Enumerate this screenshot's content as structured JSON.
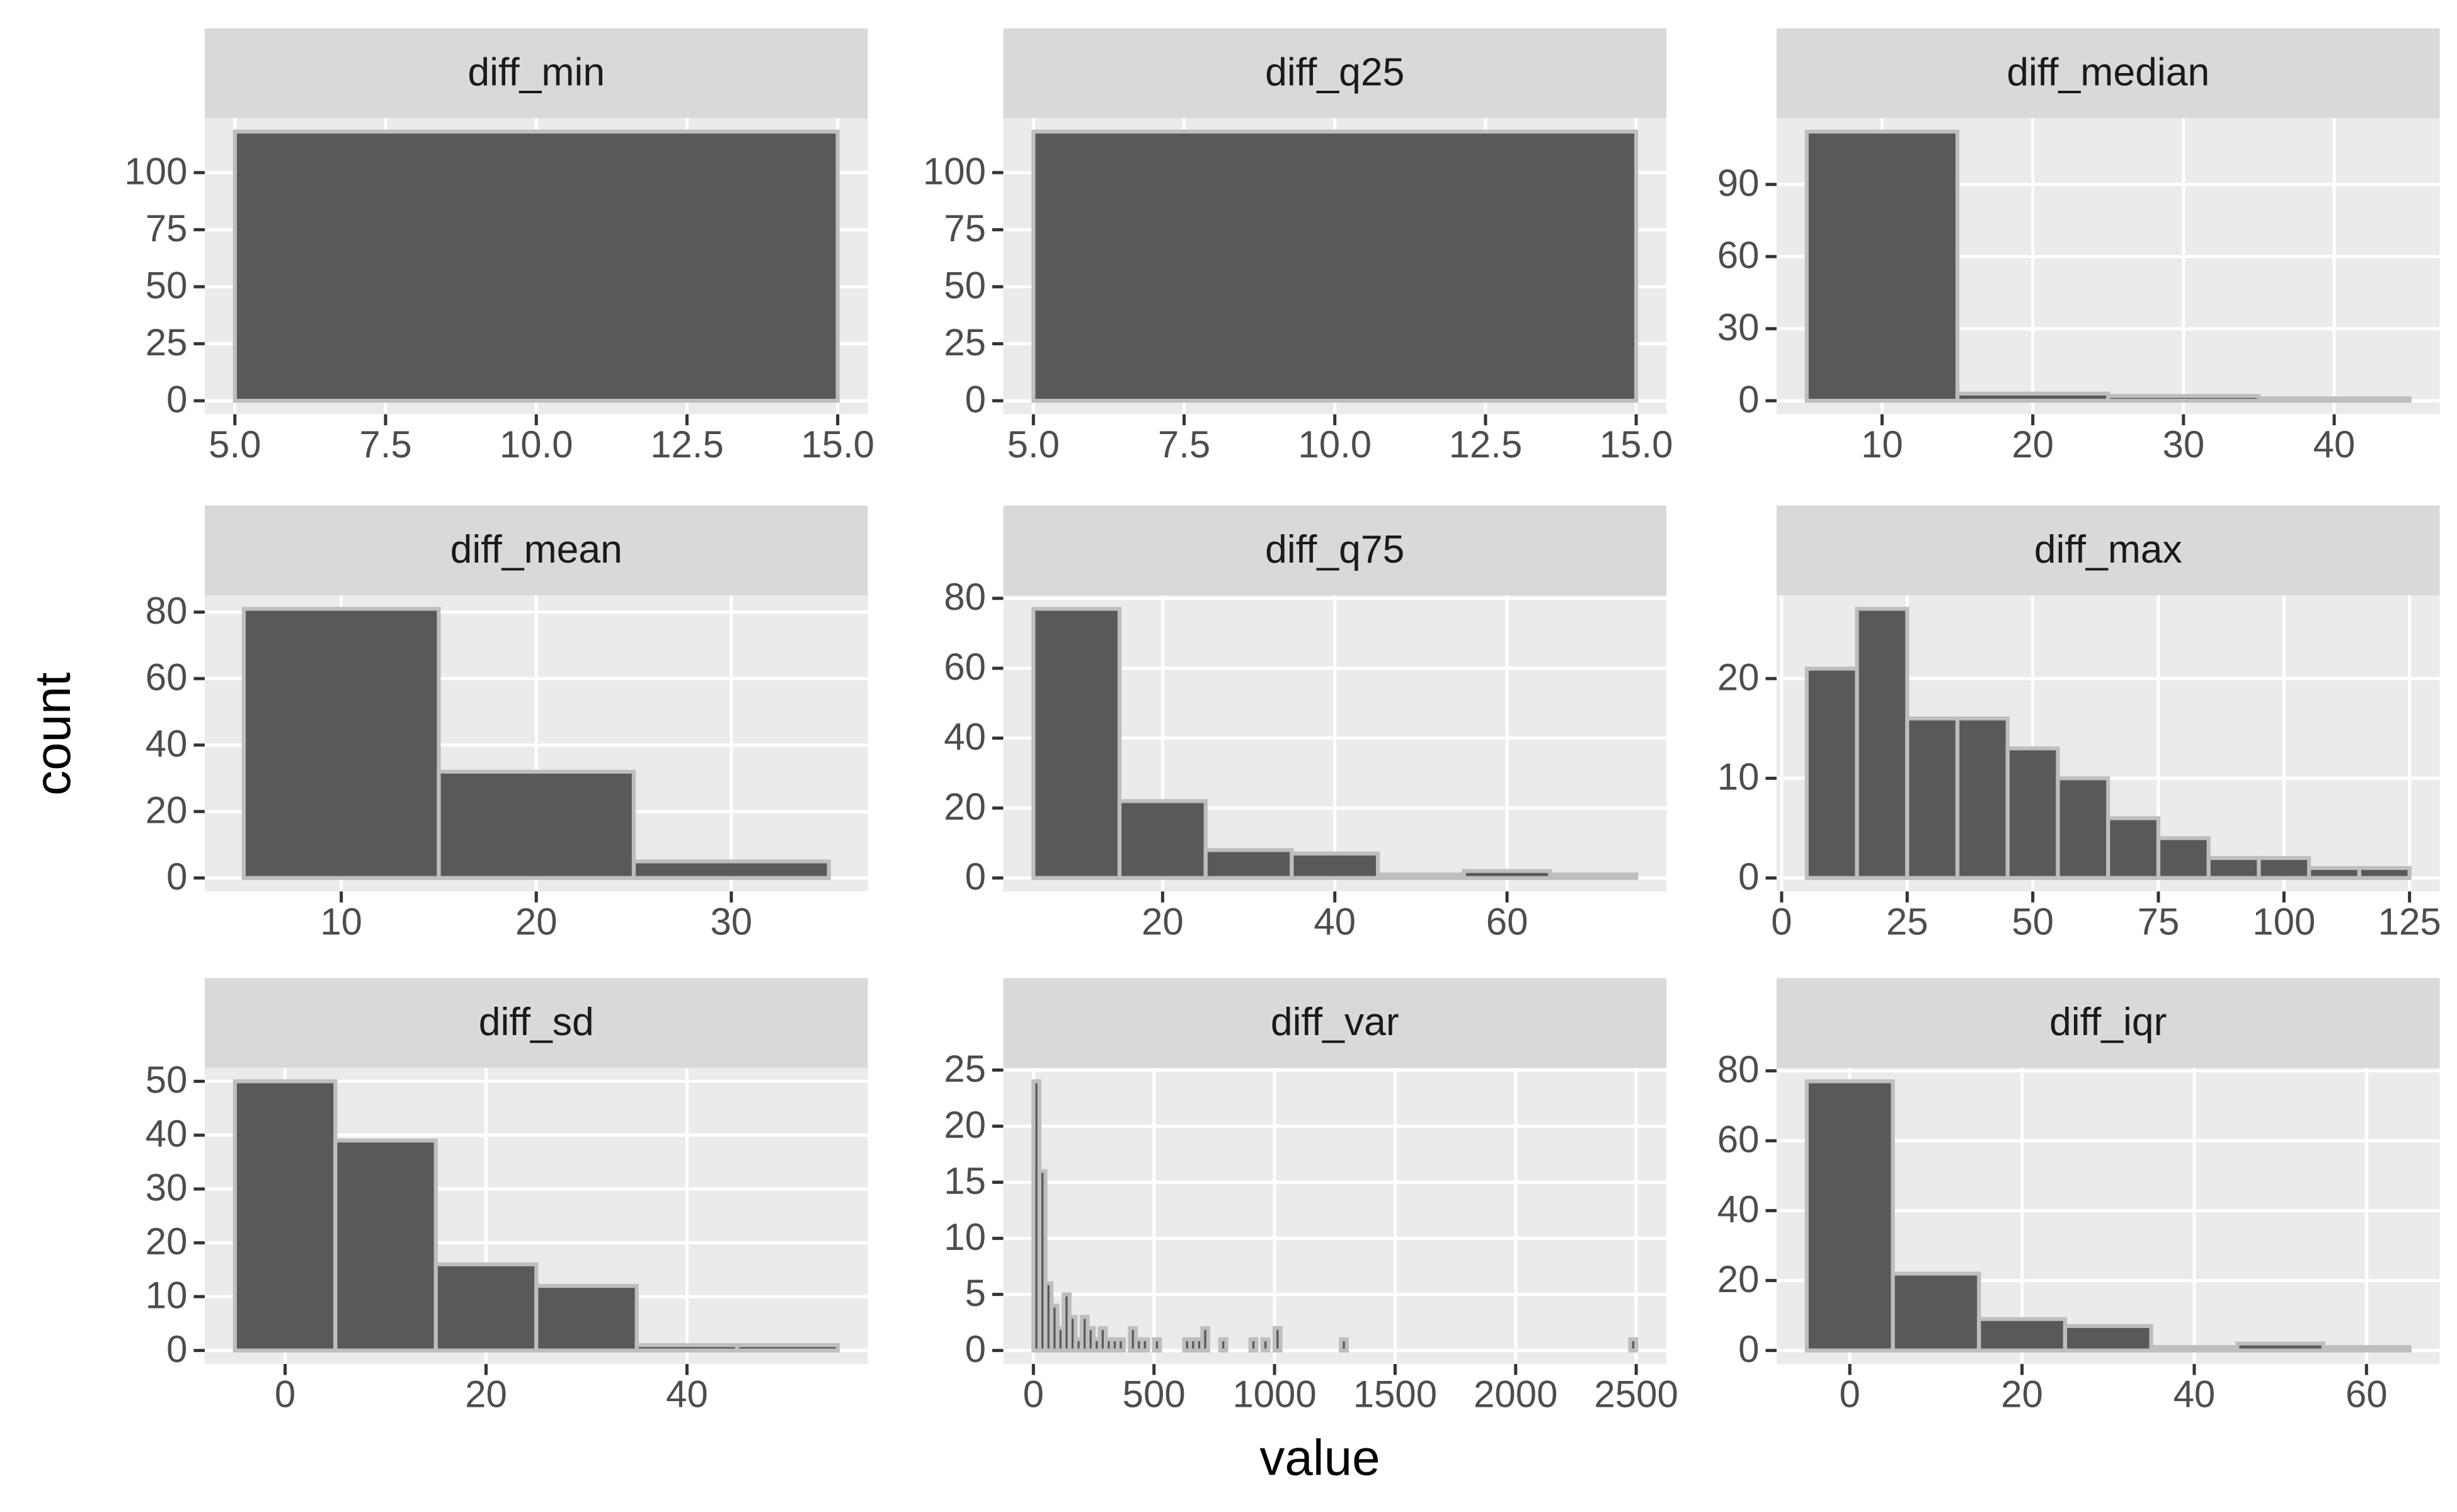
{
  "x_label": "value",
  "y_label": "count",
  "chart_data": [
    {
      "type": "histogram",
      "title": "diff_min",
      "bins": [
        5,
        15
      ],
      "counts": [
        118
      ],
      "color": "#595959",
      "edgecolor": "#bebebe",
      "xlim": [
        4.5,
        15.5
      ],
      "xticks": [
        {
          "value": 5,
          "label": "5.0"
        },
        {
          "value": 7.5,
          "label": "7.5"
        },
        {
          "value": 10,
          "label": "10.0"
        },
        {
          "value": 12.5,
          "label": "12.5"
        },
        {
          "value": 15,
          "label": "15.0"
        }
      ],
      "ylim": [
        -5.9,
        123.9
      ],
      "yticks": [
        0,
        25,
        50,
        75,
        100
      ],
      "grid": true
    },
    {
      "type": "histogram",
      "title": "diff_q25",
      "bins": [
        5,
        15
      ],
      "counts": [
        118
      ],
      "color": "#595959",
      "edgecolor": "#bebebe",
      "xlim": [
        4.5,
        15.5
      ],
      "xticks": [
        {
          "value": 5,
          "label": "5.0"
        },
        {
          "value": 7.5,
          "label": "7.5"
        },
        {
          "value": 10,
          "label": "10.0"
        },
        {
          "value": 12.5,
          "label": "12.5"
        },
        {
          "value": 15,
          "label": "15.0"
        }
      ],
      "ylim": [
        -5.9,
        123.9
      ],
      "yticks": [
        0,
        25,
        50,
        75,
        100
      ],
      "grid": true
    },
    {
      "type": "histogram",
      "title": "diff_median",
      "bins": [
        5,
        15,
        25,
        35,
        45
      ],
      "counts": [
        112,
        3,
        2,
        1
      ],
      "color": "#595959",
      "edgecolor": "#bebebe",
      "xlim": [
        3,
        47
      ],
      "xticks": [
        10,
        20,
        30,
        40
      ],
      "ylim": [
        -5.6,
        117.6
      ],
      "yticks": [
        0,
        30,
        60,
        90
      ],
      "grid": true
    },
    {
      "type": "histogram",
      "title": "diff_mean",
      "bins": [
        5,
        15,
        25,
        35
      ],
      "counts": [
        81,
        32,
        5
      ],
      "color": "#595959",
      "edgecolor": "#bebebe",
      "xlim": [
        3,
        37
      ],
      "xticks": [
        10,
        20,
        30
      ],
      "ylim": [
        -4.05,
        85.05
      ],
      "yticks": [
        0,
        20,
        40,
        60,
        80
      ],
      "grid": true
    },
    {
      "type": "histogram",
      "title": "diff_q75",
      "bins": [
        5,
        15,
        25,
        35,
        45,
        55,
        65,
        75
      ],
      "counts": [
        77,
        22,
        8,
        7,
        1,
        2,
        1
      ],
      "color": "#595959",
      "edgecolor": "#bebebe",
      "xlim": [
        1.5,
        78.5
      ],
      "xticks": [
        20,
        40,
        60
      ],
      "ylim": [
        -3.85,
        80.85
      ],
      "yticks": [
        0,
        20,
        40,
        60,
        80
      ],
      "grid": true
    },
    {
      "type": "histogram",
      "title": "diff_max",
      "bins": [
        5,
        15,
        25,
        35,
        45,
        55,
        65,
        75,
        85,
        95,
        105,
        115,
        125
      ],
      "counts": [
        21,
        27,
        16,
        16,
        13,
        10,
        6,
        4,
        2,
        2,
        1,
        1
      ],
      "color": "#595959",
      "edgecolor": "#bebebe",
      "xlim": [
        -1,
        131
      ],
      "xticks": [
        0,
        25,
        50,
        75,
        100,
        125
      ],
      "ylim": [
        -1.35,
        28.35
      ],
      "yticks": [
        0,
        10,
        20
      ],
      "grid": true
    },
    {
      "type": "histogram",
      "title": "diff_sd",
      "bins": [
        -5,
        5,
        15,
        25,
        35,
        45,
        55
      ],
      "counts": [
        50,
        39,
        16,
        12,
        1,
        1
      ],
      "color": "#595959",
      "edgecolor": "#bebebe",
      "xlim": [
        -8,
        58
      ],
      "xticks": [
        0,
        20,
        40
      ],
      "ylim": [
        -2.5,
        52.5
      ],
      "yticks": [
        0,
        10,
        20,
        30,
        40,
        50
      ],
      "grid": true
    },
    {
      "type": "histogram",
      "title": "diff_var",
      "bins": [
        0,
        25,
        50,
        75,
        100,
        125,
        150,
        175,
        200,
        225,
        250,
        275,
        300,
        325,
        350,
        375,
        400,
        425,
        450,
        475,
        500,
        525,
        550,
        575,
        600,
        625,
        650,
        675,
        700,
        725,
        750,
        775,
        800,
        825,
        850,
        875,
        900,
        925,
        950,
        975,
        1000,
        1025,
        1050,
        1075,
        1100,
        1125,
        1150,
        1175,
        1200,
        1225,
        1250,
        1275,
        1300,
        1325,
        1350,
        1375,
        1400,
        1425,
        1450,
        1475,
        1500,
        1525,
        1550,
        1575,
        1600,
        1625,
        1650,
        1675,
        1700,
        1725,
        1750,
        1775,
        1800,
        1825,
        1850,
        1875,
        1900,
        1925,
        1950,
        1975,
        2000,
        2025,
        2050,
        2075,
        2100,
        2125,
        2150,
        2175,
        2200,
        2225,
        2250,
        2275,
        2300,
        2325,
        2350,
        2375,
        2400,
        2425,
        2450,
        2475,
        2500
      ],
      "counts": [
        24,
        16,
        6,
        4,
        2,
        5,
        3,
        1,
        3,
        2,
        1,
        2,
        1,
        1,
        1,
        0,
        2,
        1,
        1,
        0,
        1,
        0,
        0,
        0,
        0,
        1,
        1,
        1,
        2,
        0,
        0,
        1,
        0,
        0,
        0,
        0,
        1,
        0,
        1,
        0,
        2,
        0,
        0,
        0,
        0,
        0,
        0,
        0,
        0,
        0,
        0,
        1,
        0,
        0,
        0,
        0,
        0,
        0,
        0,
        0,
        0,
        0,
        0,
        0,
        0,
        0,
        0,
        0,
        0,
        0,
        0,
        0,
        0,
        0,
        0,
        0,
        0,
        0,
        0,
        0,
        0,
        0,
        0,
        0,
        0,
        0,
        0,
        0,
        0,
        0,
        0,
        0,
        0,
        0,
        0,
        0,
        0,
        0,
        0,
        1
      ],
      "color": "#595959",
      "edgecolor": "#bebebe",
      "xlim": [
        -125,
        2625
      ],
      "xticks": [
        0,
        500,
        1000,
        1500,
        2000,
        2500
      ],
      "ylim": [
        -1.2,
        25.2
      ],
      "yticks": [
        0,
        5,
        10,
        15,
        20,
        25
      ],
      "grid": true
    },
    {
      "type": "histogram",
      "title": "diff_iqr",
      "bins": [
        -5,
        5,
        15,
        25,
        35,
        45,
        55,
        65
      ],
      "counts": [
        77,
        22,
        9,
        7,
        1,
        2,
        1
      ],
      "color": "#595959",
      "edgecolor": "#bebebe",
      "xlim": [
        -8.5,
        68.5
      ],
      "xticks": [
        0,
        20,
        40,
        60
      ],
      "ylim": [
        -3.85,
        80.85
      ],
      "yticks": [
        0,
        20,
        40,
        60,
        80
      ],
      "grid": true
    }
  ]
}
